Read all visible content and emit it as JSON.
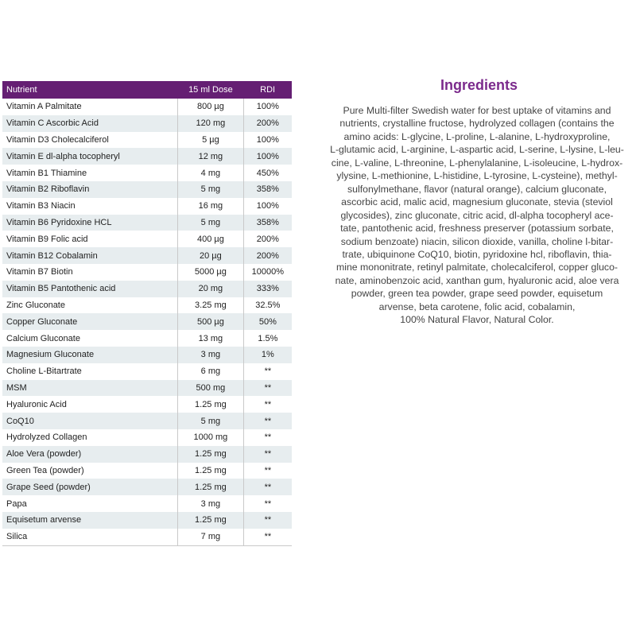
{
  "table": {
    "header": [
      "Nutrient",
      "15 ml Dose",
      "RDI"
    ],
    "rows": [
      [
        "Vitamin A Palmitate",
        "800 µg",
        "100%"
      ],
      [
        "Vitamin C Ascorbic Acid",
        "120 mg",
        "200%"
      ],
      [
        "Vitamin D3 Cholecalciferol",
        "5 µg",
        "100%"
      ],
      [
        "Vitamin E dl-alpha tocopheryl",
        "12 mg",
        "100%"
      ],
      [
        "Vitamin B1 Thiamine",
        "4 mg",
        "450%"
      ],
      [
        "Vitamin B2 Riboflavin",
        "5 mg",
        "358%"
      ],
      [
        "Vitamin B3 Niacin",
        "16 mg",
        "100%"
      ],
      [
        "Vitamin B6 Pyridoxine HCL",
        "5 mg",
        "358%"
      ],
      [
        "Vitamin B9 Folic acid",
        "400 µg",
        "200%"
      ],
      [
        "Vitamin B12 Cobalamin",
        "20 µg",
        "200%"
      ],
      [
        "Vitamin B7 Biotin",
        "5000 µg",
        "10000%"
      ],
      [
        "Vitamin B5 Pantothenic acid",
        "20 mg",
        "333%"
      ],
      [
        "Zinc Gluconate",
        "3.25 mg",
        "32.5%"
      ],
      [
        "Copper Gluconate",
        "500 µg",
        "50%"
      ],
      [
        "Calcium Gluconate",
        "13 mg",
        "1.5%"
      ],
      [
        "Magnesium Gluconate",
        "3 mg",
        "1%"
      ],
      [
        "Choline L-Bitartrate",
        "6 mg",
        "**"
      ],
      [
        "MSM",
        "500 mg",
        "**"
      ],
      [
        "Hyaluronic Acid",
        "1.25 mg",
        "**"
      ],
      [
        "CoQ10",
        "5 mg",
        "**"
      ],
      [
        "Hydrolyzed Collagen",
        "1000 mg",
        "**"
      ],
      [
        "Aloe Vera (powder)",
        "1.25 mg",
        "**"
      ],
      [
        "Green Tea (powder)",
        "1.25 mg",
        "**"
      ],
      [
        "Grape Seed (powder)",
        "1.25 mg",
        "**"
      ],
      [
        "Papa",
        "3 mg",
        "**"
      ],
      [
        "Equisetum arvense",
        "1.25 mg",
        "**"
      ],
      [
        "Silica",
        "7 mg",
        "**"
      ]
    ]
  },
  "ingredients": {
    "title": "Ingredients",
    "lines": [
      "Pure Multi-filter Swedish water for best uptake of vitamins and",
      "nutrients, crystalline fructose, hydrolyzed collagen (contains the",
      "amino acids:  L-glycine, L-proline, L-alanine, L-hydroxyproline,",
      "L-glutamic acid, L-arginine, L-aspartic acid, L-serine, L-lysine, L-leu-",
      "cine, L-valine, L-threonine, L-phenylalanine, L-isoleucine, L-hydrox-",
      "ylysine, L-methionine, L-histidine, L-tyrosine, L-cysteine), methyl-",
      "sulfonylmethane, flavor (natural orange), calcium gluconate,",
      "ascorbic acid, malic acid, magnesium gluconate, stevia (steviol",
      "glycosides), zinc gluconate, citric acid, dl-alpha tocopheryl ace-",
      "tate, pantothenic acid, freshness preserver (potassium sorbate,",
      "sodium benzoate) niacin, silicon dioxide, vanilla, choline l-bitar-",
      "trate, ubiquinone CoQ10, biotin, pyridoxine hcl, riboflavin, thia-",
      "mine mononitrate, retinyl palmitate, cholecalciferol, copper gluco-",
      "nate, aminobenzoic acid, xanthan gum, hyaluronic acid, aloe vera",
      "powder, green tea powder, grape seed powder, equisetum",
      "arvense, beta carotene, folic acid, cobalamin,",
      "100% Natural Flavor, Natural Color."
    ]
  }
}
